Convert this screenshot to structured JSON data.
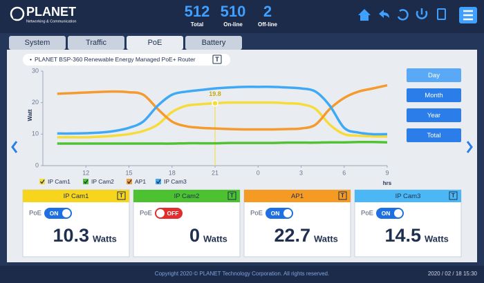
{
  "header": {
    "brand": "PLANET",
    "tagline": "Networking & Communication",
    "stats": [
      {
        "value": 512,
        "label": "Total"
      },
      {
        "value": 510,
        "label": "On-line"
      },
      {
        "value": 2,
        "label": "Off-line"
      }
    ]
  },
  "tabs": {
    "items": [
      "System",
      "Traffic",
      "PoE",
      "Battery"
    ],
    "active": "PoE"
  },
  "chart_data": {
    "type": "line",
    "title": "PLANET BSP-360 Renewable Energy Managed PoE+ Router",
    "title_badge": "T",
    "y_label": "Watt",
    "x_label": "hrs",
    "categories": [
      null,
      null,
      "12",
      null,
      null,
      "15",
      null,
      null,
      "18",
      null,
      null,
      "21",
      null,
      null,
      "0",
      null,
      null,
      "3",
      null,
      null,
      "6",
      null,
      null,
      "9"
    ],
    "ylim": [
      0,
      30
    ],
    "yticks": [
      0,
      10,
      20,
      30
    ],
    "series": [
      {
        "name": "IP Cam1",
        "color": "#f5dc3a",
        "values": [
          9,
          9,
          9,
          9.2,
          9.5,
          10,
          11,
          13,
          17,
          19,
          19.5,
          19.8,
          20,
          20,
          20,
          20,
          19.8,
          19.5,
          18,
          13,
          10,
          9.5,
          9.3,
          9.2
        ]
      },
      {
        "name": "IP Cam2",
        "color": "#52c234",
        "values": [
          7,
          7,
          7,
          7,
          7,
          7,
          7,
          7,
          7,
          7.1,
          7.1,
          7.1,
          7.2,
          7.2,
          7.2,
          7.2,
          7.3,
          7.3,
          7.3,
          7.4,
          7.4,
          7.5,
          7.5,
          7.4
        ]
      },
      {
        "name": "AP1",
        "color": "#f59a2e",
        "values": [
          22.8,
          23,
          23.2,
          23.4,
          23.5,
          23.3,
          22.5,
          18,
          14,
          12.5,
          12,
          11.8,
          11.6,
          11.5,
          11.5,
          11.5,
          11.6,
          11.8,
          13,
          18,
          21.5,
          23.5,
          24.5,
          25.5
        ]
      },
      {
        "name": "IP Cam3",
        "color": "#3fa9f5",
        "values": [
          10.2,
          10.2,
          10.3,
          10.5,
          11,
          12,
          14,
          19,
          22.5,
          23.5,
          24,
          24.5,
          24.8,
          25,
          25,
          25,
          24.8,
          24.5,
          23.5,
          19,
          12,
          10.5,
          10,
          10
        ]
      }
    ],
    "marker_series": "IP Cam1",
    "marker_at": "21"
  },
  "range_buttons": {
    "items": [
      "Day",
      "Month",
      "Year",
      "Total"
    ],
    "active": "Day"
  },
  "cards": [
    {
      "name": "IP Cam1",
      "badge": "T",
      "color": "#f7d51d",
      "poe_label": "PoE",
      "switch": "ON",
      "poe_on": true,
      "value": 10.3,
      "unit": "Watts"
    },
    {
      "name": "IP Cam2",
      "badge": "T",
      "color": "#4cc230",
      "poe_label": "PoE",
      "switch": "OFF",
      "poe_on": false,
      "value": 0,
      "unit": "Watts"
    },
    {
      "name": "AP1",
      "badge": "T",
      "color": "#f59a23",
      "poe_label": "PoE",
      "switch": "ON",
      "poe_on": true,
      "value": 22.7,
      "unit": "Watts"
    },
    {
      "name": "IP Cam3",
      "badge": "T",
      "color": "#4bb8f5",
      "poe_label": "PoE",
      "switch": "ON",
      "poe_on": true,
      "value": 14.5,
      "unit": "Watts"
    }
  ],
  "footer": {
    "copyright": "Copyright 2020 © PLANET Technology Corporation. All rights reserved.",
    "datetime": "2020 / 02 / 18 15:30"
  }
}
